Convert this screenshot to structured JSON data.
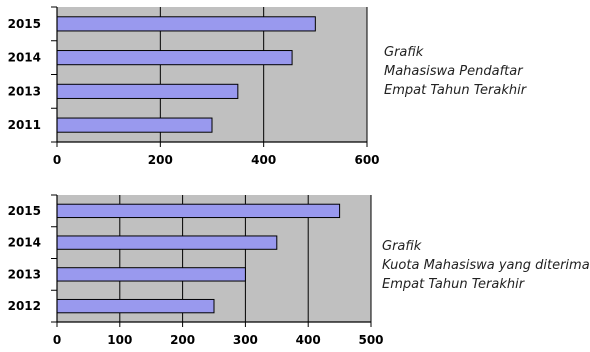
{
  "chart_data": [
    {
      "type": "bar",
      "orientation": "horizontal",
      "categories": [
        "2011",
        "2013",
        "2014",
        "2015"
      ],
      "values": [
        300,
        350,
        455,
        500
      ],
      "xlim": [
        0,
        600
      ],
      "xticks": [
        "0",
        "200",
        "400",
        "600"
      ],
      "grid": true,
      "bar_color": "#9999ee",
      "plot_background": "#c0c0c0",
      "title_lines": [
        "Grafik",
        "Mahasiswa Pendaftar",
        "Empat  Tahun Terakhir"
      ]
    },
    {
      "type": "bar",
      "orientation": "horizontal",
      "categories": [
        "2012",
        "2013",
        "2014",
        "2015"
      ],
      "values": [
        250,
        300,
        350,
        450
      ],
      "xlim": [
        0,
        500
      ],
      "xticks": [
        "0",
        "100",
        "200",
        "300",
        "400",
        "500"
      ],
      "grid": true,
      "bar_color": "#9999ee",
      "plot_background": "#c0c0c0",
      "title_lines": [
        "Grafik",
        "Kuota Mahasiswa yang diterima",
        "Empat  Tahun Terakhir"
      ]
    }
  ]
}
